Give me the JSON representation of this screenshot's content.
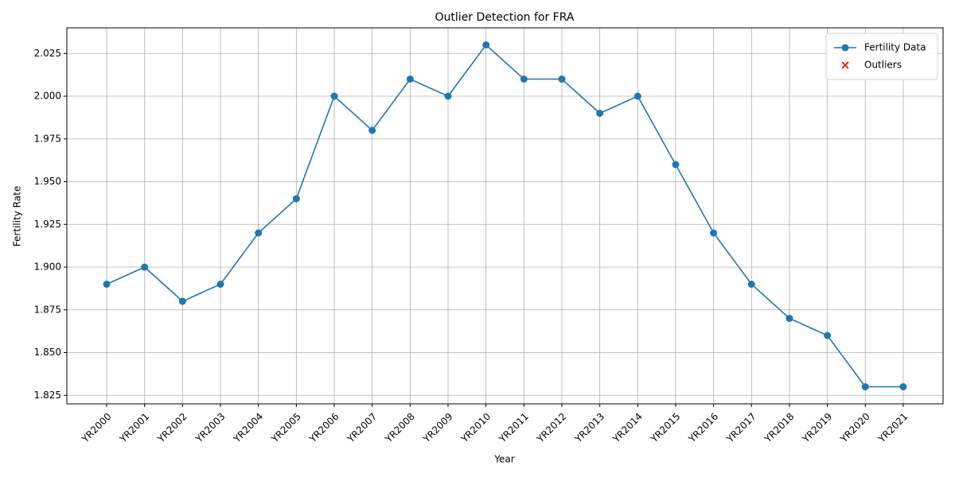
{
  "chart_data": {
    "type": "line",
    "title": "Outlier Detection for FRA",
    "xlabel": "Year",
    "ylabel": "Fertility Rate",
    "categories": [
      "YR2000",
      "YR2001",
      "YR2002",
      "YR2003",
      "YR2004",
      "YR2005",
      "YR2006",
      "YR2007",
      "YR2008",
      "YR2009",
      "YR2010",
      "YR2011",
      "YR2012",
      "YR2013",
      "YR2014",
      "YR2015",
      "YR2016",
      "YR2017",
      "YR2018",
      "YR2019",
      "YR2020",
      "YR2021"
    ],
    "series": [
      {
        "name": "Fertility Data",
        "color": "#1f77b4",
        "marker": "circle",
        "values": [
          1.89,
          1.9,
          1.88,
          1.89,
          1.92,
          1.94,
          2.0,
          1.98,
          2.01,
          2.0,
          2.03,
          2.01,
          2.01,
          1.99,
          2.0,
          1.96,
          1.92,
          1.89,
          1.87,
          1.86,
          1.83,
          1.83
        ]
      },
      {
        "name": "Outliers",
        "color": "#ff0000",
        "marker": "x",
        "values": [
          null,
          null,
          null,
          null,
          null,
          null,
          null,
          null,
          null,
          null,
          null,
          null,
          null,
          null,
          null,
          null,
          null,
          null,
          null,
          null,
          null,
          null
        ]
      }
    ],
    "ylim": [
      1.82,
      2.04
    ],
    "yticks": [
      {
        "value": 1.825,
        "label": "1.825"
      },
      {
        "value": 1.85,
        "label": "1.850"
      },
      {
        "value": 1.875,
        "label": "1.875"
      },
      {
        "value": 1.9,
        "label": "1.900"
      },
      {
        "value": 1.925,
        "label": "1.925"
      },
      {
        "value": 1.95,
        "label": "1.950"
      },
      {
        "value": 1.975,
        "label": "1.975"
      },
      {
        "value": 2.0,
        "label": "2.000"
      },
      {
        "value": 2.025,
        "label": "2.025"
      }
    ],
    "grid": true,
    "legend": "upper right"
  }
}
